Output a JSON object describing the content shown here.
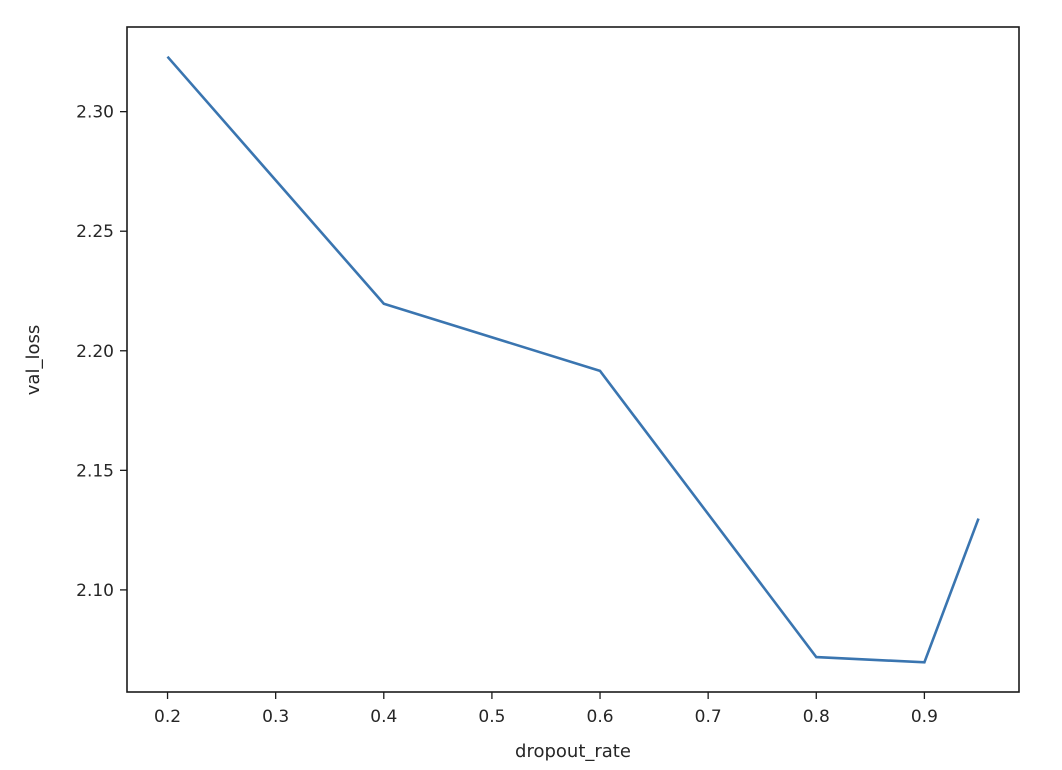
{
  "chart_data": {
    "type": "line",
    "title": "",
    "xlabel": "dropout_rate",
    "ylabel": "val_loss",
    "x": [
      0.2,
      0.4,
      0.6,
      0.8,
      0.9,
      0.95
    ],
    "series": [
      {
        "name": "val_loss",
        "color": "#3a75b0",
        "values": [
          2.323,
          2.2197,
          2.1916,
          2.0719,
          2.0697,
          2.1298
        ]
      }
    ],
    "xticks": [
      0.2,
      0.3,
      0.4,
      0.5,
      0.6,
      0.7,
      0.8,
      0.9
    ],
    "xtick_labels": [
      "0.2",
      "0.3",
      "0.4",
      "0.5",
      "0.6",
      "0.7",
      "0.8",
      "0.9"
    ],
    "yticks": [
      2.1,
      2.15,
      2.2,
      2.25,
      2.3
    ],
    "ytick_labels": [
      "2.10",
      "2.15",
      "2.20",
      "2.25",
      "2.30"
    ],
    "xlim": [
      0.1625,
      0.9875
    ],
    "ylim": [
      2.0573,
      2.3354
    ],
    "grid": false,
    "legend": null
  }
}
